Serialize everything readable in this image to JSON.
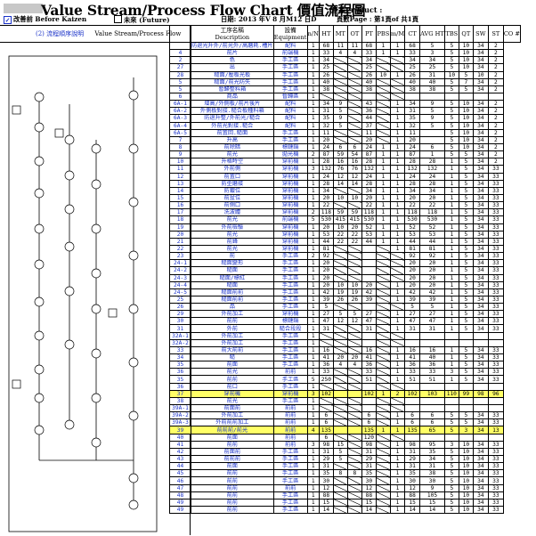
{
  "header": {
    "logo_text": "",
    "title": "Value Stream/Process Flow Chart  價值流程圖",
    "product_label": "產品Product :",
    "before_label": "改善前 Before Kaizen",
    "future_label": "未來 (Future)",
    "date_label": "日期: 2013 年V 8 月M12 日D",
    "page_label": "頁數Page : 第1頁of 共1頁"
  },
  "left_panel": {
    "sequence_label": "(2) 流程順序說明",
    "flow_label": "Value Stream/Process Flow"
  },
  "table": {
    "columns": [
      "",
      "工序名稱\nDescription",
      "設備\nEquipment",
      "n/N",
      "HT",
      "MT",
      "OT",
      "PT",
      "PBS",
      "m/M",
      "CT",
      "AVG HT",
      "TBS",
      "QT",
      "SW",
      "ST",
      "CO #"
    ],
    "rows": [
      [
        "",
        "防退光升外/前光外/高磨耗.槽片",
        "配料",
        "1",
        "68",
        "11",
        "11",
        "68",
        "1",
        "1",
        "68",
        "5",
        "5",
        "10",
        "34",
        "2"
      ],
      [
        "4",
        "前片",
        "前端機",
        "1",
        "33",
        "4",
        "4",
        "33",
        "1",
        "1",
        "33",
        "3",
        "5",
        "10",
        "34",
        "2"
      ],
      [
        "2",
        "色",
        "手工區",
        "1",
        "34",
        "",
        "",
        "34",
        "",
        "",
        "34",
        "34",
        "5",
        "10",
        "34",
        "2"
      ],
      [
        "27",
        "出",
        "手工區",
        "1",
        "25",
        "",
        "",
        "25",
        "",
        "",
        "25",
        "25",
        "5",
        "10",
        "34",
        "2"
      ],
      [
        "28",
        "糙面/壓板光板",
        "手工區",
        "1",
        "26",
        "",
        "",
        "26",
        "10",
        "1",
        "26",
        "31",
        "10",
        "5",
        "10",
        "2"
      ],
      [
        "5",
        "糙面/前光防失",
        "手工區",
        "1",
        "40",
        "",
        "",
        "40",
        "",
        "",
        "40",
        "40",
        "5",
        "7",
        "34",
        "2"
      ],
      [
        "5",
        "暫歸整料箱",
        "手工區",
        "1",
        "38",
        "",
        "",
        "38",
        "",
        "",
        "38",
        "38",
        "5",
        "5",
        "34",
        "2"
      ],
      [
        "6",
        "商品",
        "暫歸區",
        "1",
        "",
        "",
        "",
        "",
        "",
        "",
        "",
        "",
        "",
        "",
        "",
        ""
      ],
      [
        "6A-1",
        "增高/外側板/前片後片",
        "配料",
        "1",
        "34",
        "9",
        "",
        "43",
        "",
        "1",
        "34",
        "9",
        "5",
        "10",
        "34",
        "2"
      ],
      [
        "6A-2",
        "外側板對接.糙合板種料箱",
        "配料",
        "1",
        "31",
        "5",
        "",
        "36",
        "",
        "1",
        "31",
        "5",
        "5",
        "10",
        "34",
        "2"
      ],
      [
        "6A-3",
        "防退升整/外前光/糙合",
        "配料",
        "1",
        "35",
        "9",
        "",
        "44",
        "",
        "1",
        "35",
        "9",
        "5",
        "10",
        "34",
        "2"
      ],
      [
        "6A-4",
        "外前光對接.糙合",
        "配料",
        "1",
        "32",
        "5",
        "",
        "37",
        "",
        "1",
        "32",
        "5",
        "5",
        "10",
        "34",
        "2"
      ],
      [
        "6A-5",
        "前置回.糙面",
        "手工區",
        "1",
        "11",
        "",
        "",
        "11",
        "",
        "1",
        "11",
        "",
        "5",
        "10",
        "34",
        "2"
      ],
      [
        "7",
        "升高",
        "手工區",
        "1",
        "20",
        "",
        "",
        "20",
        "",
        "1",
        "20",
        "",
        "5",
        "10",
        "34",
        "2"
      ],
      [
        "8",
        "前除暗",
        "標鏈鍋",
        "1",
        "24",
        "6",
        "6",
        "24",
        "1",
        "1",
        "24",
        "6",
        "5",
        "10",
        "34",
        "2"
      ],
      [
        "9",
        "前光",
        "拋光機",
        "2",
        "87",
        "59",
        "54",
        "87",
        "1",
        "1",
        "87",
        "1",
        "5",
        "5",
        "34",
        "2"
      ],
      [
        "10",
        "升格時空",
        "穿前機",
        "1",
        "28",
        "16",
        "16",
        "28",
        "1",
        "1",
        "28",
        "28",
        "1",
        "5",
        "34",
        "2"
      ],
      [
        "11",
        "外前側",
        "穿前機",
        "3",
        "132",
        "76",
        "76",
        "132",
        "1",
        "1",
        "132",
        "132",
        "1",
        "5",
        "34",
        "33"
      ],
      [
        "12",
        "前置口",
        "穿前機",
        "1",
        "24",
        "12",
        "12",
        "24",
        "1",
        "1",
        "24",
        "24",
        "1",
        "5",
        "34",
        "33"
      ],
      [
        "13",
        "防型磨接",
        "穿前機",
        "1",
        "28",
        "14",
        "14",
        "28",
        "1",
        "1",
        "28",
        "28",
        "1",
        "5",
        "34",
        "33"
      ],
      [
        "14",
        "防鍍位",
        "穿前機",
        "1",
        "34",
        "",
        "",
        "34",
        "1",
        "1",
        "34",
        "34",
        "1",
        "5",
        "34",
        "33"
      ],
      [
        "15",
        "前盆位",
        "穿前機",
        "1",
        "20",
        "10",
        "10",
        "20",
        "1",
        "1",
        "20",
        "20",
        "1",
        "5",
        "34",
        "33"
      ],
      [
        "16",
        "前側口",
        "穿前機",
        "1",
        "22",
        "",
        "",
        "22",
        "1",
        "1",
        "22",
        "22",
        "1",
        "5",
        "34",
        "33"
      ],
      [
        "17",
        "洗波體",
        "穿前機",
        "2",
        "118",
        "59",
        "59",
        "118",
        "1",
        "1",
        "118",
        "118",
        "1",
        "5",
        "34",
        "33"
      ],
      [
        "18",
        "前光",
        "前端機",
        "5",
        "530",
        "415",
        "415",
        "530",
        "1",
        "1",
        "530",
        "530",
        "1",
        "5",
        "34",
        "33"
      ],
      [
        "19",
        "外前檢驗",
        "穿前機",
        "1",
        "20",
        "10",
        "20",
        "52",
        "1",
        "1",
        "52",
        "52",
        "1",
        "5",
        "34",
        "33"
      ],
      [
        "20",
        "前光",
        "穿前機",
        "1",
        "53",
        "22",
        "22",
        "53",
        "1",
        "1",
        "53",
        "53",
        "1",
        "5",
        "34",
        "33"
      ],
      [
        "21",
        "前鋒",
        "穿前機",
        "1",
        "44",
        "22",
        "22",
        "44",
        "1",
        "1",
        "44",
        "44",
        "1",
        "5",
        "34",
        "33"
      ],
      [
        "22",
        "前光",
        "穿前機",
        "1",
        "81",
        "",
        "",
        "",
        "",
        "1",
        "81",
        "81",
        "1",
        "5",
        "34",
        "33"
      ],
      [
        "23",
        "前",
        "手工區",
        "2",
        "92",
        "",
        "",
        "",
        "",
        "",
        "92",
        "92",
        "1",
        "5",
        "34",
        "33"
      ],
      [
        "24-1",
        "糙面變形",
        "手工區",
        "1",
        "20",
        "",
        "",
        "",
        "",
        "",
        "20",
        "20",
        "1",
        "5",
        "34",
        "33"
      ],
      [
        "24-2",
        "糙面",
        "手工區",
        "1",
        "20",
        "",
        "",
        "",
        "",
        "",
        "20",
        "20",
        "1",
        "5",
        "34",
        "33"
      ],
      [
        "24-3",
        "糙面/標紅",
        "手工區",
        "1",
        "20",
        "",
        "",
        "",
        "",
        "",
        "20",
        "20",
        "1",
        "5",
        "34",
        "33"
      ],
      [
        "24-4",
        "糙面",
        "手工區",
        "1",
        "20",
        "10",
        "10",
        "20",
        "",
        "1",
        "20",
        "20",
        "1",
        "5",
        "34",
        "33"
      ],
      [
        "24-5",
        "糙面前前",
        "手工區",
        "1",
        "42",
        "19",
        "19",
        "42",
        "",
        "1",
        "42",
        "42",
        "1",
        "5",
        "34",
        "33"
      ],
      [
        "25",
        "糙面前前",
        "手工區",
        "1",
        "39",
        "26",
        "26",
        "39",
        "",
        "1",
        "39",
        "39",
        "1",
        "5",
        "34",
        "33"
      ],
      [
        "26",
        "品",
        "手工區",
        "1",
        "5",
        "",
        "",
        "",
        "",
        "",
        "5",
        "5",
        "1",
        "5",
        "34",
        "33"
      ],
      [
        "29",
        "外前加工",
        "穿前機",
        "1",
        "27",
        "5",
        "5",
        "27",
        "",
        "1",
        "27",
        "27",
        "1",
        "5",
        "34",
        "33"
      ],
      [
        "30",
        "前前",
        "標鏈鍋",
        "1",
        "47",
        "12",
        "12",
        "47",
        "",
        "1",
        "47",
        "47",
        "1",
        "5",
        "34",
        "33"
      ],
      [
        "31",
        "外前",
        "糙合段段",
        "1",
        "31",
        "",
        "",
        "31",
        "",
        "1",
        "31",
        "31",
        "1",
        "5",
        "34",
        "33"
      ],
      [
        "32A-1",
        "外前加工",
        "手工區",
        "1",
        "",
        "",
        "",
        "",
        "",
        "",
        "",
        "",
        "",
        "",
        "",
        ""
      ],
      [
        "32A-2",
        "外前加工",
        "手工區",
        "1",
        "",
        "",
        "",
        "",
        "",
        "",
        "",
        "",
        "",
        "",
        "",
        ""
      ],
      [
        "33",
        "前大前前",
        "手工區",
        "1",
        "16",
        "",
        "",
        "16",
        "",
        "1",
        "16",
        "16",
        "1",
        "5",
        "34",
        "33"
      ],
      [
        "34",
        "糙",
        "手工區",
        "1",
        "41",
        "20",
        "20",
        "41",
        "",
        "1",
        "41",
        "40",
        "1",
        "5",
        "34",
        "33"
      ],
      [
        "35",
        "前面",
        "手工區",
        "1",
        "36",
        "4",
        "4",
        "36",
        "",
        "1",
        "36",
        "36",
        "1",
        "5",
        "34",
        "33"
      ],
      [
        "36",
        "前光",
        "前前",
        "1",
        "33",
        "",
        "",
        "33",
        "",
        "1",
        "33",
        "33",
        "3",
        "5",
        "34",
        "33"
      ],
      [
        "35",
        "前前",
        "手工區",
        "5",
        "250",
        "",
        "",
        "51",
        "",
        "1",
        "51",
        "51",
        "1",
        "5",
        "34",
        "33"
      ],
      [
        "36",
        "前口",
        "手工區",
        "1",
        "",
        "",
        "",
        "",
        "",
        "",
        "",
        "",
        "",
        "",
        "",
        ""
      ],
      [
        "37",
        "穿前機",
        "穿前機",
        "3",
        "102",
        "",
        "",
        "102",
        "1",
        "2",
        "102",
        "103",
        "110",
        "99",
        "98",
        "96"
      ],
      [
        "38",
        "前光",
        "手工區",
        "1",
        "",
        "",
        "",
        "",
        "",
        "",
        "",
        "",
        "",
        "",
        "",
        ""
      ],
      [
        "39A-1",
        "前面前",
        "前前",
        "1",
        "",
        "",
        "",
        "",
        "",
        "",
        "",
        "",
        "",
        "",
        "",
        ""
      ],
      [
        "39A-2",
        "外前加工",
        "前前",
        "1",
        "6",
        "",
        "",
        "6",
        "",
        "1",
        "6",
        "6",
        "5",
        "5",
        "34",
        "33"
      ],
      [
        "39A-3",
        "外前前前加工",
        "前前",
        "1",
        "6",
        "",
        "",
        "6",
        "",
        "1",
        "6",
        "6",
        "5",
        "5",
        "34",
        "33"
      ],
      [
        "39",
        "前前前/前光",
        "前前",
        "4",
        "135",
        "",
        "",
        "135",
        "1",
        "1",
        "135",
        "65",
        "5",
        "3",
        "34",
        "13"
      ],
      [
        "40",
        "前面",
        "前前",
        "",
        "6",
        "",
        "",
        "120",
        "",
        "",
        "",
        "",
        "",
        "",
        "",
        ""
      ],
      [
        "41",
        "前前",
        "前前",
        "3",
        "98",
        "15",
        "",
        "98",
        "",
        "1",
        "98",
        "95",
        "3",
        "10",
        "34",
        "33"
      ],
      [
        "42",
        "前面前",
        "手工區",
        "1",
        "31",
        "5",
        "",
        "31",
        "",
        "1",
        "31",
        "35",
        "5",
        "10",
        "34",
        "33"
      ],
      [
        "43",
        "前前前",
        "手工區",
        "1",
        "29",
        "5",
        "",
        "29",
        "",
        "1",
        "29",
        "34",
        "5",
        "10",
        "34",
        "33"
      ],
      [
        "44",
        "前面",
        "手工區",
        "1",
        "31",
        "",
        "",
        "31",
        "",
        "1",
        "31",
        "31",
        "5",
        "10",
        "34",
        "33"
      ],
      [
        "45",
        "前前",
        "手工區",
        "1",
        "35",
        "8",
        "8",
        "35",
        "",
        "1",
        "35",
        "38",
        "5",
        "10",
        "34",
        "33"
      ],
      [
        "46",
        "前前",
        "手工區",
        "1",
        "30",
        "",
        "",
        "30",
        "",
        "1",
        "30",
        "30",
        "5",
        "10",
        "34",
        "33"
      ],
      [
        "47",
        "前前",
        "前前",
        "1",
        "12",
        "",
        "",
        "12",
        "",
        "1",
        "12",
        "9",
        "5",
        "10",
        "34",
        "33"
      ],
      [
        "48",
        "前前",
        "手工區",
        "1",
        "88",
        "",
        "",
        "88",
        "",
        "1",
        "88",
        "105",
        "5",
        "10",
        "34",
        "33"
      ],
      [
        "49",
        "前前",
        "手工區",
        "1",
        "15",
        "",
        "",
        "15",
        "",
        "1",
        "15",
        "15",
        "5",
        "10",
        "34",
        "33"
      ],
      [
        "49",
        "前前",
        "手工區",
        "1",
        "14",
        "",
        "",
        "14",
        "",
        "1",
        "14",
        "14",
        "5",
        "10",
        "34",
        "33"
      ]
    ],
    "highlight_rows": [
      48,
      53
    ]
  }
}
